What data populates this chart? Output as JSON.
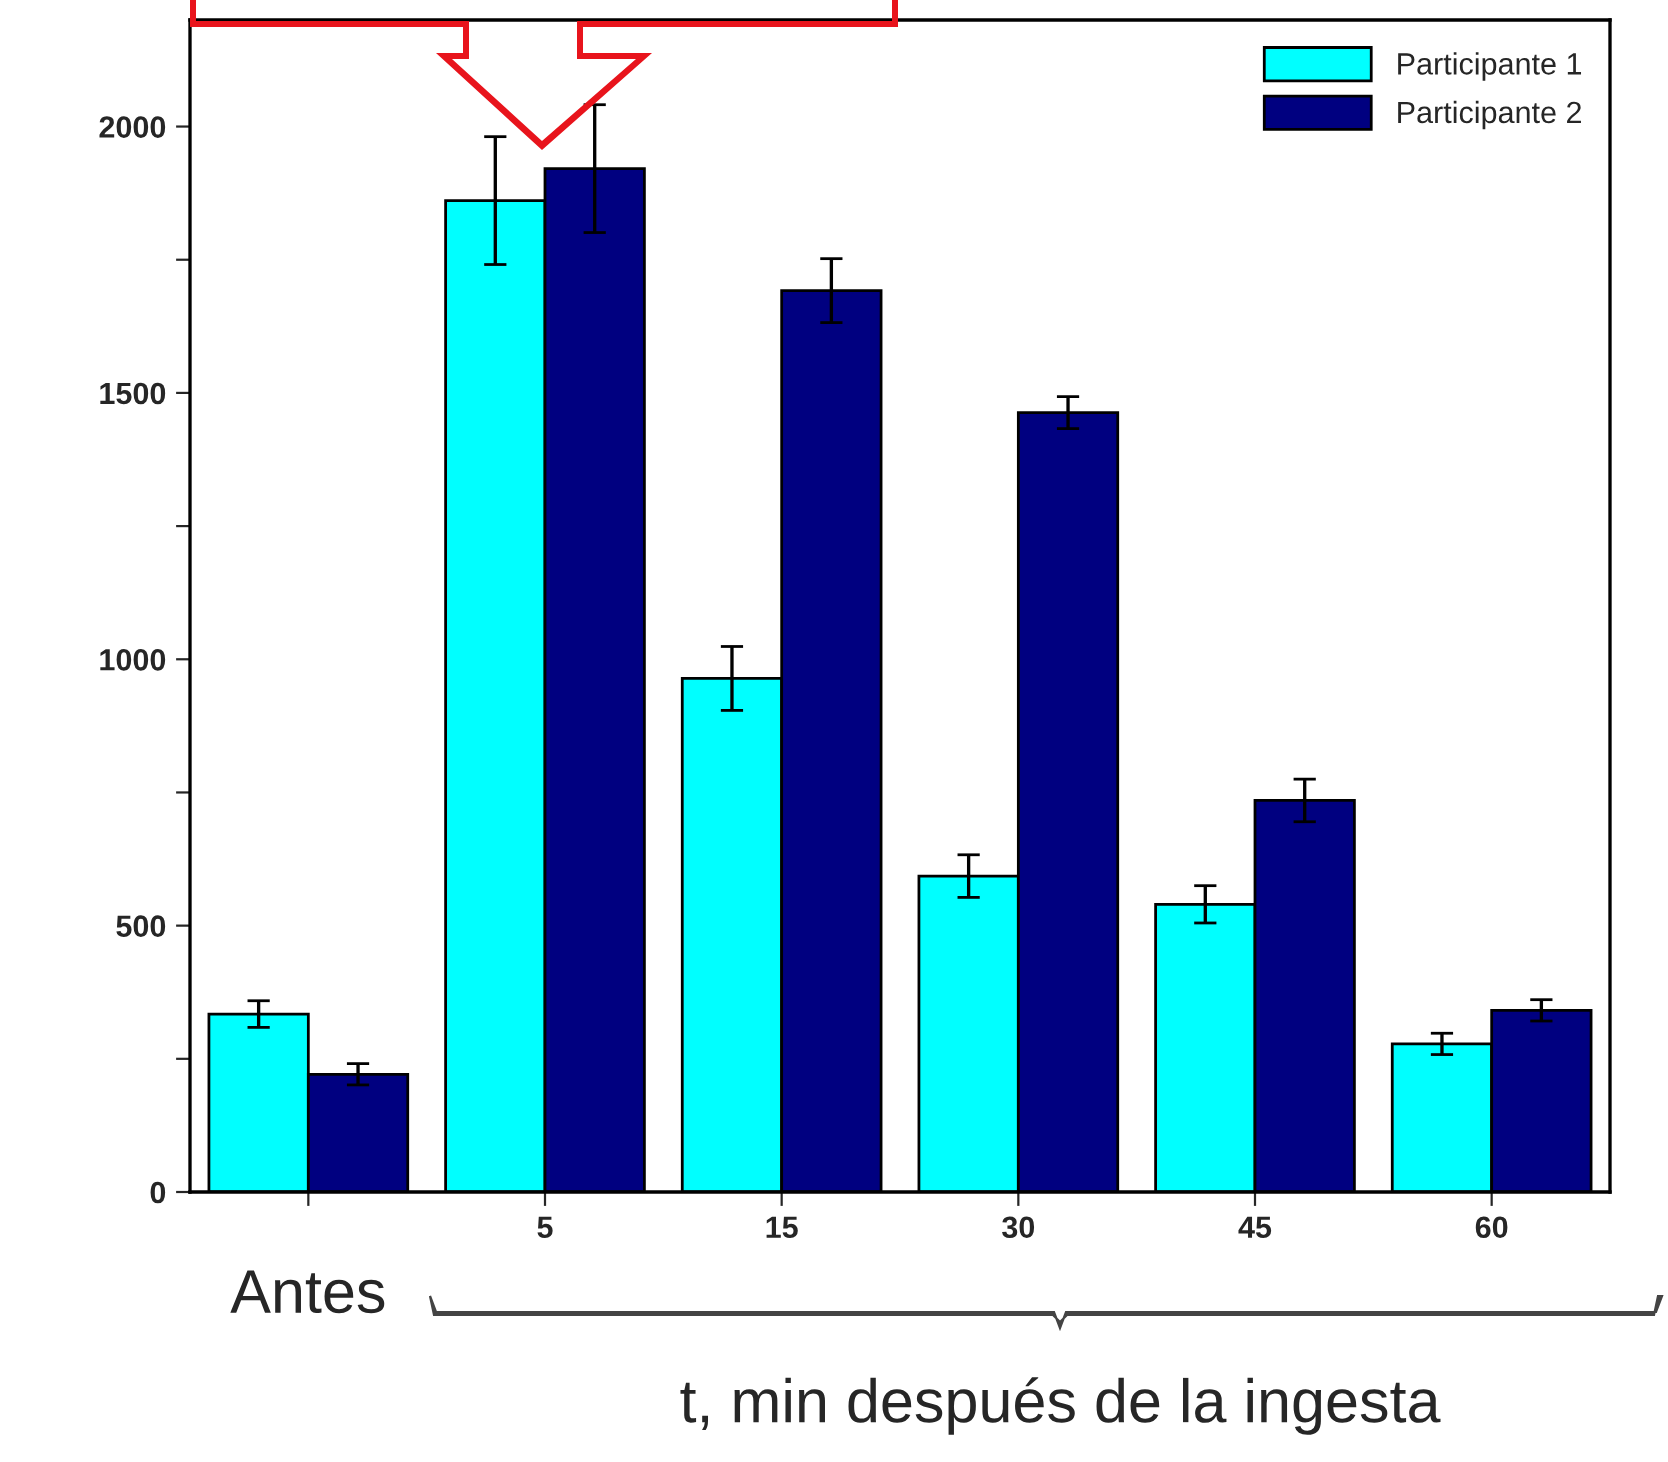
{
  "chart_data": {
    "type": "bar",
    "categories": [
      "Antes",
      "5",
      "15",
      "30",
      "45",
      "60"
    ],
    "series": [
      {
        "name": "Participante 1",
        "color": "#00ffff",
        "values": [
          334,
          1861,
          964,
          593,
          540,
          278
        ],
        "errors": [
          25,
          120,
          60,
          40,
          35,
          20
        ]
      },
      {
        "name": "Participante 2",
        "color": "#000080",
        "values": [
          221,
          1921,
          1692,
          1463,
          735,
          341
        ],
        "errors": [
          20,
          120,
          60,
          30,
          40,
          20
        ]
      }
    ],
    "ylim": [
      0,
      2200
    ],
    "yticks": [
      0,
      {
        "value": 250,
        "label": null
      },
      500,
      {
        "value": 750,
        "label": null
      },
      1000,
      {
        "value": 1250,
        "label": null
      },
      1500,
      {
        "value": 1750,
        "label": null
      },
      2000
    ],
    "annotations": [
      "t, min después de la ingesta"
    ],
    "legend": "top right",
    "grid": false
  }
}
